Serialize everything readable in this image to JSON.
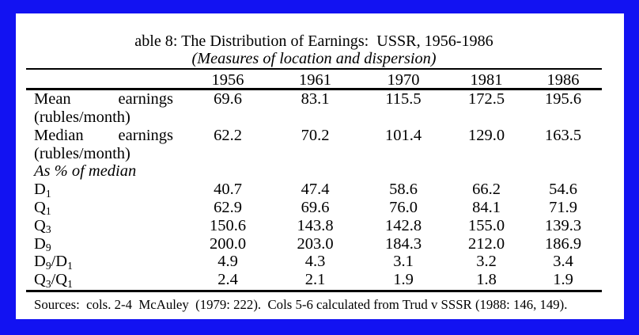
{
  "page": {
    "frame_color": "#1212f2",
    "sheet_color": "#ffffff"
  },
  "table": {
    "title": "able 8: The Distribution of Earnings:  USSR, 1956-1986",
    "subtitle": "(Measures of location and dispersion)",
    "columns": [
      "1956",
      "1961",
      "1970",
      "1981",
      "1986"
    ],
    "rows": [
      {
        "type": "wrapped",
        "label": "Mean earnings (rubles/month)",
        "label_line1": [
          "Mean",
          "earnings"
        ],
        "label_line2": "(rubles/month)",
        "values": [
          "69.6",
          "83.1",
          "115.5",
          "172.5",
          "195.6"
        ]
      },
      {
        "type": "wrapped",
        "label": "Median earnings (rubles/month)",
        "label_line1": [
          "Median",
          "earnings"
        ],
        "label_line2": "(rubles/month)",
        "values": [
          "62.2",
          "70.2",
          "101.4",
          "129.0",
          "163.5"
        ]
      },
      {
        "type": "section",
        "label": "As % of median"
      },
      {
        "type": "data",
        "label": "D1",
        "label_parts": [
          {
            "t": "D"
          },
          {
            "t": "1",
            "sub": true
          }
        ],
        "values": [
          "40.7",
          "47.4",
          "58.6",
          "66.2",
          "54.6"
        ]
      },
      {
        "type": "data",
        "label": "Q1",
        "label_parts": [
          {
            "t": "Q"
          },
          {
            "t": "1",
            "sub": true
          }
        ],
        "values": [
          "62.9",
          "69.6",
          "76.0",
          "84.1",
          "71.9"
        ]
      },
      {
        "type": "data",
        "label": "Q3",
        "label_parts": [
          {
            "t": "Q"
          },
          {
            "t": "3",
            "sub": true
          }
        ],
        "values": [
          "150.6",
          "143.8",
          "142.8",
          "155.0",
          "139.3"
        ]
      },
      {
        "type": "data",
        "label": "D9",
        "label_parts": [
          {
            "t": "D"
          },
          {
            "t": "9",
            "sub": true
          }
        ],
        "values": [
          "200.0",
          "203.0",
          "184.3",
          "212.0",
          "186.9"
        ]
      },
      {
        "type": "data",
        "label": "D9/D1",
        "label_parts": [
          {
            "t": "D"
          },
          {
            "t": "9",
            "sub": true
          },
          {
            "t": "/D"
          },
          {
            "t": "1",
            "sub": true
          }
        ],
        "values": [
          "4.9",
          "4.3",
          "3.1",
          "3.2",
          "3.4"
        ]
      },
      {
        "type": "data",
        "label": "Q3/Q1",
        "label_parts": [
          {
            "t": "Q"
          },
          {
            "t": "3",
            "sub": true
          },
          {
            "t": "/Q"
          },
          {
            "t": "1",
            "sub": true
          }
        ],
        "values": [
          "2.4",
          "2.1",
          "1.9",
          "1.8",
          "1.9"
        ]
      }
    ],
    "source_note": "Sources:  cols. 2-4  McAuley  (1979: 222).  Cols 5-6 calculated from Trud v SSSR (1988: 146, 149)."
  }
}
